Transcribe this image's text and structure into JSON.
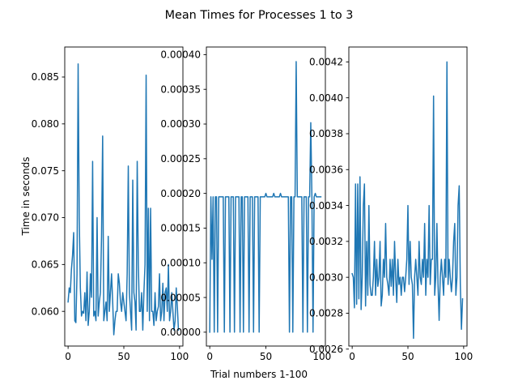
{
  "figure": {
    "title": "Mean Times for Processes 1 to 3",
    "xlabel": "Trial numbers 1-100",
    "ylabel": "Time in seconds",
    "line_color": "#1f77b4"
  },
  "chart_data": [
    {
      "type": "line",
      "title": "",
      "xlim": [
        -3,
        103
      ],
      "ylim": [
        0.0563,
        0.0882
      ],
      "xticks": [
        0,
        50,
        100
      ],
      "yticks": [
        0.06,
        0.065,
        0.07,
        0.075,
        0.08,
        0.085
      ],
      "ytick_labels": [
        "0.060",
        "0.065",
        "0.070",
        "0.075",
        "0.080",
        "0.085"
      ],
      "grid": false,
      "legend": "none",
      "series": [
        {
          "x": [
            0,
            1,
            2,
            3,
            4,
            5,
            6,
            7,
            8,
            9,
            10,
            11,
            12,
            13,
            14,
            15,
            16,
            17,
            18,
            19,
            20,
            21,
            22,
            23,
            24,
            25,
            26,
            27,
            28,
            29,
            30,
            31,
            32,
            33,
            34,
            35,
            36,
            37,
            38,
            39,
            40,
            41,
            42,
            43,
            44,
            45,
            46,
            47,
            48,
            49,
            50,
            51,
            52,
            53,
            54,
            55,
            56,
            57,
            58,
            59,
            60,
            61,
            62,
            63,
            64,
            65,
            66,
            67,
            68,
            69,
            70,
            71,
            72,
            73,
            74,
            75,
            76,
            77,
            78,
            79,
            80,
            81,
            82,
            83,
            84,
            85,
            86,
            87,
            88,
            89,
            90,
            91,
            92,
            93,
            94,
            95,
            96,
            97,
            98,
            99
          ],
          "y": [
            0.061,
            0.0625,
            0.062,
            0.0645,
            0.066,
            0.0684,
            0.059,
            0.0588,
            0.064,
            0.0864,
            0.07,
            0.0625,
            0.0595,
            0.06,
            0.0598,
            0.062,
            0.059,
            0.0642,
            0.0585,
            0.06,
            0.064,
            0.0615,
            0.076,
            0.0595,
            0.06,
            0.059,
            0.07,
            0.0595,
            0.061,
            0.062,
            0.068,
            0.0787,
            0.059,
            0.06,
            0.061,
            0.059,
            0.068,
            0.06,
            0.062,
            0.064,
            0.061,
            0.0575,
            0.059,
            0.06,
            0.06,
            0.064,
            0.063,
            0.061,
            0.06,
            0.062,
            0.061,
            0.06,
            0.059,
            0.064,
            0.0755,
            0.062,
            0.06,
            0.058,
            0.074,
            0.062,
            0.061,
            0.058,
            0.076,
            0.065,
            0.06,
            0.06,
            0.062,
            0.058,
            0.062,
            0.065,
            0.0852,
            0.06,
            0.071,
            0.059,
            0.071,
            0.06,
            0.06,
            0.0585,
            0.062,
            0.059,
            0.06,
            0.0605,
            0.064,
            0.059,
            0.06,
            0.063,
            0.059,
            0.062,
            0.0625,
            0.06,
            0.065,
            0.059,
            0.06,
            0.062,
            0.06,
            0.058,
            0.059,
            0.0625,
            0.0605,
            0.058
          ]
        }
      ]
    },
    {
      "type": "line",
      "title": "",
      "xlim": [
        -3,
        103
      ],
      "ylim": [
        -2e-05,
        0.000411
      ],
      "xticks": [
        0,
        50,
        100
      ],
      "yticks": [
        0.0,
        5e-05,
        0.0001,
        0.00015,
        0.0002,
        0.00025,
        0.0003,
        0.00035,
        0.0004
      ],
      "ytick_labels": [
        "0.00000",
        "0.00005",
        "0.00010",
        "0.00015",
        "0.00020",
        "0.00025",
        "0.00030",
        "0.00035",
        "0.00040"
      ],
      "grid": false,
      "legend": "none",
      "series": [
        {
          "x": [
            0,
            1,
            2,
            3,
            4,
            5,
            6,
            7,
            8,
            9,
            10,
            11,
            12,
            13,
            14,
            15,
            16,
            17,
            18,
            19,
            20,
            21,
            22,
            23,
            24,
            25,
            26,
            27,
            28,
            29,
            30,
            31,
            32,
            33,
            34,
            35,
            36,
            37,
            38,
            39,
            40,
            41,
            42,
            43,
            44,
            45,
            46,
            47,
            48,
            49,
            50,
            51,
            52,
            53,
            54,
            55,
            56,
            57,
            58,
            59,
            60,
            61,
            62,
            63,
            64,
            65,
            66,
            67,
            68,
            69,
            70,
            71,
            72,
            73,
            74,
            75,
            76,
            77,
            78,
            79,
            80,
            81,
            82,
            83,
            84,
            85,
            86,
            87,
            88,
            89,
            90,
            91,
            92,
            93,
            94,
            95,
            96,
            97,
            98,
            99
          ],
          "y": [
            0.0,
            0.000195,
            0.000105,
            0.000195,
            0.0,
            0.000195,
            0.000195,
            0.0,
            0.000195,
            0.000195,
            0.000195,
            0.000195,
            0.000195,
            0.0,
            0.000195,
            0.000195,
            0.000195,
            0.000195,
            0.0,
            0.000195,
            0.000195,
            0.000195,
            0.0,
            0.000195,
            0.000195,
            0.000195,
            0.000195,
            0.0,
            0.000195,
            0.000195,
            0.0,
            0.000195,
            0.000195,
            0.000195,
            0.000195,
            0.0,
            0.000195,
            0.000195,
            0.000195,
            0.0,
            0.000195,
            0.000195,
            0.000195,
            0.000195,
            0.0,
            0.000195,
            0.000195,
            0.000195,
            0.000195,
            0.000195,
            0.0002,
            0.000195,
            0.000195,
            0.000195,
            0.000195,
            0.000195,
            0.000195,
            0.0002,
            0.000195,
            0.000195,
            0.000195,
            0.000195,
            0.000195,
            0.0002,
            0.000195,
            0.000195,
            0.000195,
            0.000195,
            0.000195,
            0.000195,
            0.000195,
            0.0,
            0.000195,
            0.000195,
            0.0,
            0.000195,
            0.000195,
            0.00039,
            0.000195,
            0.000195,
            0.000195,
            0.000195,
            0.000195,
            0.0,
            0.000195,
            0.000195,
            0.000195,
            0.0,
            0.000195,
            0.000195,
            0.000302,
            0.000195,
            0.0,
            0.000195,
            0.0002,
            0.000195,
            0.000195,
            0.000195,
            0.000195,
            0.000195
          ]
        }
      ]
    },
    {
      "type": "line",
      "title": "",
      "xlim": [
        -3,
        103
      ],
      "ylim": [
        0.002617,
        0.004283
      ],
      "xticks": [
        0,
        50,
        100
      ],
      "yticks": [
        0.0026,
        0.0028,
        0.003,
        0.0032,
        0.0034,
        0.0036,
        0.0038,
        0.004,
        0.0042
      ],
      "ytick_labels": [
        "0.0026",
        "0.0028",
        "0.0030",
        "0.0032",
        "0.0034",
        "0.0036",
        "0.0038",
        "0.0040",
        "0.0042"
      ],
      "grid": false,
      "legend": "none",
      "series": [
        {
          "x": [
            0,
            1,
            2,
            3,
            4,
            5,
            6,
            7,
            8,
            9,
            10,
            11,
            12,
            13,
            14,
            15,
            16,
            17,
            18,
            19,
            20,
            21,
            22,
            23,
            24,
            25,
            26,
            27,
            28,
            29,
            30,
            31,
            32,
            33,
            34,
            35,
            36,
            37,
            38,
            39,
            40,
            41,
            42,
            43,
            44,
            45,
            46,
            47,
            48,
            49,
            50,
            51,
            52,
            53,
            54,
            55,
            56,
            57,
            58,
            59,
            60,
            61,
            62,
            63,
            64,
            65,
            66,
            67,
            68,
            69,
            70,
            71,
            72,
            73,
            74,
            75,
            76,
            77,
            78,
            79,
            80,
            81,
            82,
            83,
            84,
            85,
            86,
            87,
            88,
            89,
            90,
            91,
            92,
            93,
            94,
            95,
            96,
            97,
            98,
            99
          ],
          "y": [
            0.00302,
            0.003,
            0.00283,
            0.00352,
            0.00285,
            0.00352,
            0.00288,
            0.00356,
            0.00282,
            0.003,
            0.0034,
            0.00352,
            0.00284,
            0.0032,
            0.0029,
            0.0034,
            0.00296,
            0.0029,
            0.0029,
            0.003,
            0.0032,
            0.0029,
            0.0031,
            0.00295,
            0.003,
            0.0032,
            0.00284,
            0.0029,
            0.0031,
            0.003,
            0.0033,
            0.003,
            0.00296,
            0.0029,
            0.0031,
            0.00295,
            0.0031,
            0.0029,
            0.0032,
            0.003,
            0.00286,
            0.0031,
            0.00296,
            0.003,
            0.0029,
            0.003,
            0.003,
            0.00292,
            0.003,
            0.0031,
            0.0034,
            0.00296,
            0.0032,
            0.003,
            0.00296,
            0.00266,
            0.003,
            0.0031,
            0.003,
            0.0029,
            0.0032,
            0.003,
            0.00296,
            0.0031,
            0.003,
            0.0033,
            0.0029,
            0.0031,
            0.003,
            0.0034,
            0.00296,
            0.0031,
            0.0031,
            0.00401,
            0.0029,
            0.003,
            0.0033,
            0.00296,
            0.00276,
            0.003,
            0.0031,
            0.003,
            0.0029,
            0.0031,
            0.003,
            0.0042,
            0.00296,
            0.0031,
            0.003,
            0.00292,
            0.003,
            0.0032,
            0.0033,
            0.0029,
            0.003,
            0.0034,
            0.00351,
            0.00296,
            0.00271,
            0.00288
          ]
        }
      ]
    }
  ]
}
